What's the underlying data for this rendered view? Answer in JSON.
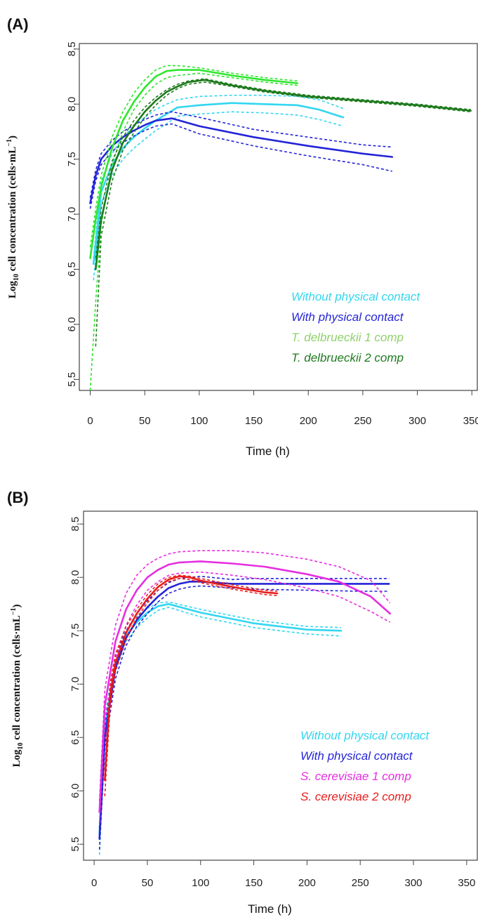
{
  "chart_data": [
    {
      "type": "line",
      "panel_label": "(A)",
      "xlabel": "Time (h)",
      "ylabel": "Log",
      "ylabel_sub": "10",
      "ylabel_rest": " cell concentration (cells·mL",
      "ylabel_sup": "−1",
      "ylabel_end": ")",
      "xlim": [
        -10,
        355
      ],
      "ylim": [
        5.4,
        8.55
      ],
      "xticks": [
        "0",
        "50",
        "100",
        "150",
        "200",
        "250",
        "300",
        "350"
      ],
      "yticks": [
        "5.5",
        "6.0",
        "6.5",
        "7.0",
        "7.5",
        "8.0",
        "8.5"
      ],
      "grid": false,
      "legend_position": "bottom-right",
      "series": [
        {
          "name": "Without physical contact",
          "color": "#33d6f0",
          "x": [
            3,
            10,
            20,
            30,
            40,
            50,
            60,
            70,
            80,
            100,
            130,
            160,
            190,
            210,
            232
          ],
          "y": [
            6.55,
            7.2,
            7.45,
            7.6,
            7.7,
            7.78,
            7.85,
            7.91,
            7.97,
            7.99,
            8.01,
            8.0,
            7.99,
            7.95,
            7.88
          ],
          "band": {
            "upper": [
              6.6,
              7.3,
              7.55,
              7.7,
              7.8,
              7.88,
              7.95,
              8.0,
              8.04,
              8.07,
              8.08,
              8.08,
              8.07,
              8.04,
              7.96
            ],
            "lower": [
              6.4,
              7.1,
              7.35,
              7.5,
              7.6,
              7.68,
              7.76,
              7.82,
              7.89,
              7.91,
              7.93,
              7.92,
              7.9,
              7.86,
              7.8
            ]
          }
        },
        {
          "name": "With physical contact",
          "color": "#2424d9",
          "x": [
            0,
            5,
            10,
            20,
            30,
            40,
            50,
            60,
            75,
            100,
            150,
            200,
            250,
            277
          ],
          "y": [
            7.1,
            7.35,
            7.5,
            7.62,
            7.7,
            7.76,
            7.81,
            7.85,
            7.87,
            7.8,
            7.7,
            7.62,
            7.55,
            7.52
          ],
          "band": {
            "upper": [
              7.15,
              7.4,
              7.55,
              7.67,
              7.75,
              7.81,
              7.86,
              7.9,
              7.93,
              7.88,
              7.77,
              7.7,
              7.63,
              7.61
            ],
            "lower": [
              7.05,
              7.3,
              7.45,
              7.57,
              7.65,
              7.71,
              7.76,
              7.8,
              7.82,
              7.73,
              7.62,
              7.53,
              7.45,
              7.39
            ]
          }
        },
        {
          "name": "T. delbrueckii 1 comp",
          "color": "#2ee62e",
          "legend_color": "#8fd16a",
          "x": [
            0,
            5,
            10,
            20,
            30,
            40,
            50,
            60,
            70,
            80,
            100,
            130,
            160,
            190
          ],
          "y": [
            6.6,
            6.95,
            7.25,
            7.6,
            7.85,
            8.02,
            8.15,
            8.25,
            8.3,
            8.31,
            8.31,
            8.26,
            8.22,
            8.19
          ],
          "band": {
            "upper": [
              6.7,
              7.05,
              7.35,
              7.7,
              7.93,
              8.1,
              8.22,
              8.31,
              8.35,
              8.35,
              8.33,
              8.28,
              8.24,
              8.21
            ],
            "lower": [
              5.4,
              6.2,
              6.9,
              7.45,
              7.75,
              7.95,
              8.08,
              8.18,
              8.24,
              8.26,
              8.28,
              8.24,
              8.2,
              8.17
            ]
          }
        },
        {
          "name": "T. delbrueckii 2 comp",
          "color": "#1e7a1e",
          "x": [
            5,
            10,
            20,
            30,
            40,
            50,
            60,
            70,
            80,
            90,
            105,
            130,
            160,
            200,
            250,
            300,
            349
          ],
          "y": [
            6.5,
            6.95,
            7.4,
            7.65,
            7.8,
            7.93,
            8.03,
            8.11,
            8.16,
            8.2,
            8.22,
            8.17,
            8.12,
            8.07,
            8.03,
            7.99,
            7.94
          ],
          "band": {
            "upper": [
              6.6,
              7.05,
              7.48,
              7.7,
              7.85,
              7.97,
              8.06,
              8.13,
              8.18,
              8.21,
              8.23,
              8.18,
              8.13,
              8.08,
              8.04,
              8.0,
              7.95
            ],
            "lower": [
              5.8,
              6.8,
              7.3,
              7.58,
              7.74,
              7.88,
              7.99,
              8.08,
              8.14,
              8.18,
              8.2,
              8.16,
              8.11,
              8.06,
              8.02,
              7.98,
              7.93
            ]
          }
        }
      ]
    },
    {
      "type": "line",
      "panel_label": "(B)",
      "xlabel": "Time (h)",
      "ylabel": "Log",
      "ylabel_sub": "10",
      "ylabel_rest": " cell concentration (cells·mL",
      "ylabel_sup": "−1",
      "ylabel_end": ")",
      "xlim": [
        -10,
        360
      ],
      "ylim": [
        5.35,
        8.62
      ],
      "xticks": [
        "0",
        "50",
        "100",
        "150",
        "200",
        "250",
        "300",
        "350"
      ],
      "yticks": [
        "5.5",
        "6.0",
        "6.5",
        "7.0",
        "7.5",
        "8.0",
        "8.5"
      ],
      "grid": false,
      "legend_position": "bottom-right",
      "series": [
        {
          "name": "Without physical contact",
          "color": "#33d6f0",
          "x": [
            5,
            10,
            20,
            30,
            40,
            50,
            60,
            70,
            100,
            150,
            200,
            232
          ],
          "y": [
            5.6,
            6.6,
            7.2,
            7.45,
            7.58,
            7.67,
            7.73,
            7.75,
            7.67,
            7.57,
            7.51,
            7.5
          ],
          "band": {
            "upper": [
              5.7,
              6.7,
              7.28,
              7.5,
              7.63,
              7.71,
              7.76,
              7.77,
              7.7,
              7.6,
              7.54,
              7.53
            ],
            "lower": [
              5.4,
              6.5,
              7.12,
              7.4,
              7.53,
              7.62,
              7.69,
              7.72,
              7.63,
              7.53,
              7.47,
              7.45
            ]
          }
        },
        {
          "name": "With physical contact",
          "color": "#2424d9",
          "x": [
            5,
            10,
            20,
            30,
            40,
            50,
            60,
            70,
            80,
            90,
            100,
            130,
            150,
            200,
            250,
            277
          ],
          "y": [
            5.55,
            6.5,
            7.15,
            7.43,
            7.6,
            7.72,
            7.82,
            7.9,
            7.94,
            7.96,
            7.96,
            7.94,
            7.94,
            7.94,
            7.94,
            7.94
          ],
          "band": {
            "upper": [
              5.65,
              6.6,
              7.25,
              7.5,
              7.66,
              7.78,
              7.88,
              7.95,
              7.99,
              8.0,
              8.01,
              7.98,
              7.99,
              7.99,
              7.99,
              7.99
            ],
            "lower": [
              5.45,
              6.4,
              7.05,
              7.36,
              7.54,
              7.66,
              7.77,
              7.85,
              7.89,
              7.91,
              7.92,
              7.9,
              7.89,
              7.88,
              7.87,
              7.87
            ]
          }
        },
        {
          "name": "S. cerevisiae 1 comp",
          "color": "#e62ee0",
          "x": [
            5,
            10,
            20,
            30,
            40,
            50,
            60,
            70,
            80,
            100,
            130,
            160,
            200,
            230,
            260,
            278
          ],
          "y": [
            5.8,
            6.8,
            7.4,
            7.7,
            7.88,
            8.0,
            8.07,
            8.12,
            8.14,
            8.15,
            8.13,
            8.1,
            8.03,
            7.96,
            7.82,
            7.66
          ],
          "band": {
            "upper": [
              5.9,
              6.95,
              7.55,
              7.85,
              8.02,
              8.12,
              8.18,
              8.22,
              8.24,
              8.25,
              8.25,
              8.23,
              8.17,
              8.1,
              7.97,
              7.76
            ],
            "lower": [
              5.7,
              6.65,
              7.25,
              7.55,
              7.74,
              7.88,
              7.96,
              8.02,
              8.04,
              8.05,
              8.02,
              7.98,
              7.9,
              7.82,
              7.68,
              7.58
            ]
          }
        },
        {
          "name": "S. cerevisiae 2 comp",
          "color": "#e81c1c",
          "x": [
            10,
            15,
            20,
            30,
            40,
            50,
            60,
            70,
            80,
            90,
            100,
            130,
            160,
            172
          ],
          "y": [
            6.1,
            6.9,
            7.2,
            7.48,
            7.66,
            7.8,
            7.91,
            7.98,
            8.01,
            8.0,
            7.97,
            7.91,
            7.86,
            7.85
          ],
          "band": {
            "upper": [
              6.2,
              7.0,
              7.28,
              7.54,
              7.7,
              7.84,
              7.94,
              8.0,
              8.02,
              8.01,
              7.99,
              7.93,
              7.88,
              7.87
            ],
            "lower": [
              5.95,
              6.8,
              7.12,
              7.42,
              7.62,
              7.76,
              7.88,
              7.96,
              7.99,
              7.98,
              7.95,
              7.89,
              7.84,
              7.83
            ]
          }
        }
      ]
    }
  ]
}
